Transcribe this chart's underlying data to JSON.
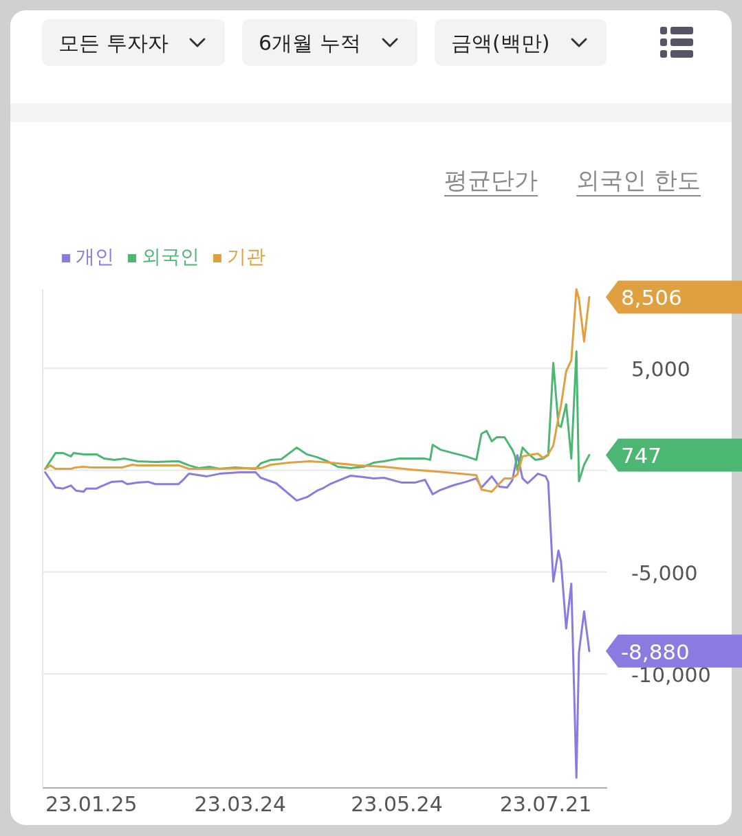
{
  "chart_data": {
    "type": "line",
    "annotations": [
      "모든 투자자",
      "6개월 누적",
      "금액(백만)",
      "평균단가",
      "외국인 한도"
    ],
    "legend": "top left",
    "grid": "y",
    "xlim": [
      "--01-06",
      "--08-14"
    ],
    "xticks": [
      {
        "value": "--01-25",
        "label": "23.01.25"
      },
      {
        "value": "--03-24",
        "label": "23.03.24"
      },
      {
        "value": "--05-24",
        "label": "23.05.24"
      },
      {
        "value": "--07-21",
        "label": "23.07.21"
      }
    ],
    "ylim": [
      -15600,
      8890
    ],
    "yticks": [
      {
        "value": -10000,
        "label": "-10,000"
      },
      {
        "value": -5000,
        "label": "-5,000"
      },
      {
        "value": 0,
        "label": null
      },
      {
        "value": 5000,
        "label": "5,000"
      }
    ],
    "series": [
      {
        "name": "개인",
        "color": "#8a7be0",
        "x": [
          "--01-07",
          "--01-11",
          "--01-14",
          "--01-17",
          "--01-19",
          "--01-22",
          "--01-23",
          "--01-27",
          "--01-29",
          "--02-02",
          "--02-06",
          "--02-08",
          "--02-12",
          "--02-16",
          "--02-19",
          "--02-28",
          "--03-02",
          "--03-04",
          "--03-11",
          "--03-16",
          "--03-24",
          "--03-30",
          "--04-01",
          "--04-07",
          "--04-15",
          "--04-19",
          "--04-23",
          "--04-25",
          "--04-28",
          "--05-06",
          "--05-11",
          "--05-15",
          "--05-19",
          "--05-26",
          "--05-31",
          "--06-04",
          "--06-07",
          "--06-10",
          "--06-15",
          "--06-20",
          "--06-24",
          "--06-26",
          "--06-30",
          "--07-03",
          "--07-06",
          "--07-08",
          "--07-10",
          "--07-12",
          "--07-14",
          "--07-18",
          "--07-21",
          "--07-22",
          "--07-24",
          "--07-26",
          "--07-27",
          "--07-29",
          "--07-31",
          "--08-02",
          "--08-03",
          "--08-05",
          "--08-07"
        ],
        "values": [
          -100,
          -850,
          -900,
          -750,
          -1000,
          -1050,
          -900,
          -900,
          -780,
          -570,
          -540,
          -680,
          -610,
          -570,
          -680,
          -680,
          -440,
          -170,
          -300,
          -170,
          -100,
          -100,
          -370,
          -640,
          -1490,
          -1320,
          -1000,
          -900,
          -680,
          -270,
          -340,
          -400,
          -370,
          -610,
          -610,
          -470,
          -1180,
          -970,
          -740,
          -570,
          -400,
          -850,
          -300,
          -810,
          -850,
          -500,
          740,
          -400,
          -640,
          -170,
          -300,
          -570,
          -5470,
          -3950,
          -4490,
          -7770,
          -5570,
          -15100,
          -8950,
          -6930,
          -8880
        ],
        "value_labels": [
          null,
          null,
          null,
          null,
          null,
          null,
          null,
          null,
          null,
          null,
          null,
          null,
          null,
          null,
          null,
          null,
          null,
          null,
          null,
          null,
          null,
          null,
          null,
          null,
          null,
          null,
          null,
          null,
          null,
          null,
          null,
          null,
          null,
          null,
          null,
          null,
          null,
          null,
          null,
          null,
          null,
          null,
          null,
          null,
          null,
          null,
          null,
          null,
          null,
          null,
          null,
          null,
          null,
          null,
          null,
          null,
          null,
          null,
          null,
          null,
          "-8,880"
        ]
      },
      {
        "name": "외국인",
        "color": "#4cb673",
        "x": [
          "--01-07",
          "--01-11",
          "--01-14",
          "--01-17",
          "--01-18",
          "--01-22",
          "--01-27",
          "--01-30",
          "--02-03",
          "--02-07",
          "--02-12",
          "--02-19",
          "--02-28",
          "--03-04",
          "--03-08",
          "--03-12",
          "--03-16",
          "--03-22",
          "--03-30",
          "--04-01",
          "--04-05",
          "--04-09",
          "--04-15",
          "--04-19",
          "--04-23",
          "--04-27",
          "--05-01",
          "--05-06",
          "--05-11",
          "--05-15",
          "--05-19",
          "--05-25",
          "--05-31",
          "--06-04",
          "--06-06",
          "--06-07",
          "--06-10",
          "--06-15",
          "--06-20",
          "--06-24",
          "--06-26",
          "--06-28",
          "--06-30",
          "--07-02",
          "--07-05",
          "--07-08",
          "--07-09",
          "--07-10",
          "--07-12",
          "--07-14",
          "--07-17",
          "--07-20",
          "--07-22",
          "--07-24",
          "--07-26",
          "--07-27",
          "--07-29",
          "--07-31",
          "--08-02",
          "--08-03",
          "--08-05",
          "--08-07"
        ],
        "values": [
          70,
          840,
          840,
          680,
          840,
          780,
          780,
          570,
          510,
          570,
          440,
          410,
          440,
          240,
          100,
          170,
          70,
          140,
          70,
          340,
          510,
          540,
          1110,
          780,
          640,
          440,
          170,
          100,
          170,
          370,
          440,
          570,
          570,
          570,
          510,
          1250,
          1010,
          840,
          680,
          510,
          1790,
          1930,
          1420,
          1620,
          1620,
          1010,
          710,
          0,
          1110,
          840,
          510,
          570,
          740,
          5270,
          2200,
          2130,
          3240,
          570,
          5840,
          -540,
          270,
          747
        ],
        "value_labels": [
          null,
          null,
          null,
          null,
          null,
          null,
          null,
          null,
          null,
          null,
          null,
          null,
          null,
          null,
          null,
          null,
          null,
          null,
          null,
          null,
          null,
          null,
          null,
          null,
          null,
          null,
          null,
          null,
          null,
          null,
          null,
          null,
          null,
          null,
          null,
          null,
          null,
          null,
          null,
          null,
          null,
          null,
          null,
          null,
          null,
          null,
          null,
          null,
          null,
          null,
          null,
          null,
          null,
          null,
          null,
          null,
          null,
          null,
          null,
          null,
          null,
          "747"
        ]
      },
      {
        "name": "기관",
        "color": "#e0a040",
        "x": [
          "--01-07",
          "--01-09",
          "--01-11",
          "--01-17",
          "--01-19",
          "--01-22",
          "--01-25",
          "--02-06",
          "--02-10",
          "--02-12",
          "--02-28",
          "--03-04",
          "--03-11",
          "--04-01",
          "--04-05",
          "--04-12",
          "--04-20",
          "--04-28",
          "--05-09",
          "--05-19",
          "--05-30",
          "--06-12",
          "--06-24",
          "--06-26",
          "--06-30",
          "--07-02",
          "--07-05",
          "--07-08",
          "--07-10",
          "--07-12",
          "--07-16",
          "--07-18",
          "--07-20",
          "--07-22",
          "--07-24",
          "--07-26",
          "--07-27",
          "--07-29",
          "--07-31",
          "--08-02",
          "--08-03",
          "--08-05",
          "--08-07"
        ],
        "values": [
          70,
          240,
          70,
          70,
          140,
          170,
          140,
          140,
          270,
          240,
          240,
          70,
          70,
          100,
          270,
          370,
          440,
          370,
          240,
          170,
          30,
          -100,
          -240,
          -950,
          -1050,
          -780,
          -400,
          -400,
          -200,
          680,
          780,
          810,
          610,
          780,
          1220,
          2600,
          3180,
          4860,
          5400,
          8890,
          8410,
          6320,
          8506
        ],
        "value_labels": [
          null,
          null,
          null,
          null,
          null,
          null,
          null,
          null,
          null,
          null,
          null,
          null,
          null,
          null,
          null,
          null,
          null,
          null,
          null,
          null,
          null,
          null,
          null,
          null,
          null,
          null,
          null,
          null,
          null,
          null,
          null,
          null,
          null,
          null,
          null,
          null,
          null,
          null,
          null,
          null,
          null,
          null,
          "8,506"
        ]
      }
    ]
  }
}
